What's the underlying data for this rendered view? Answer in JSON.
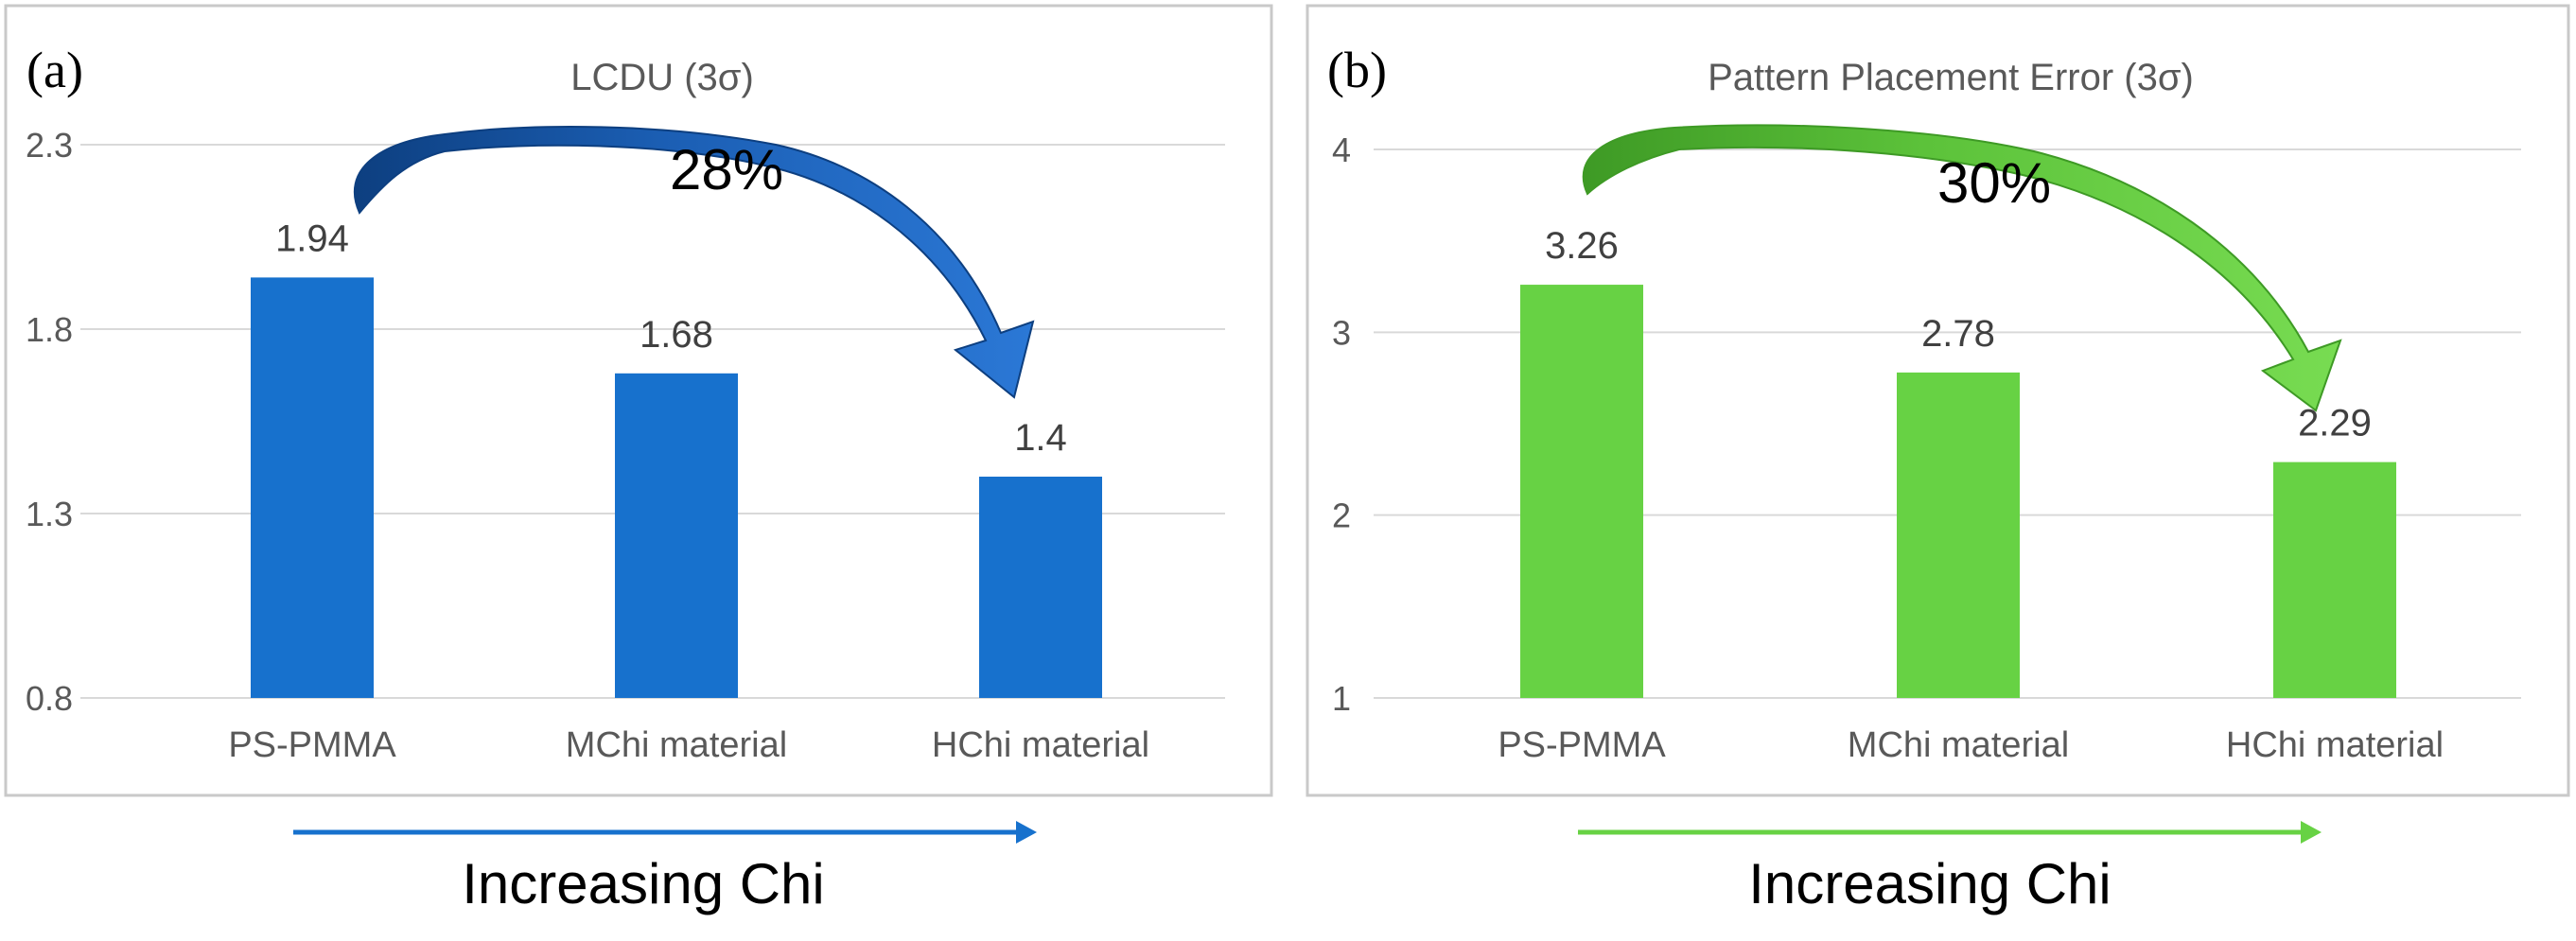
{
  "chart_data": [
    {
      "type": "bar",
      "panel_label": "(a)",
      "title": "LCDU (3σ)",
      "categories": [
        "PS-PMMA",
        "MChi material",
        "HChi material"
      ],
      "values": [
        1.94,
        1.68,
        1.4
      ],
      "value_labels": [
        "1.94",
        "1.68",
        "1.4"
      ],
      "yticks": [
        0.8,
        1.3,
        1.8,
        2.3
      ],
      "ytick_labels": [
        "0.8",
        "1.3",
        "1.8",
        "2.3"
      ],
      "ylim": [
        0.8,
        2.3
      ],
      "grid": true,
      "bar_color": "#1771cd",
      "arrow_color": "#1f5fb0",
      "annotation": "28%",
      "trend_caption": "Increasing Chi",
      "xlabel": "",
      "ylabel": ""
    },
    {
      "type": "bar",
      "panel_label": "(b)",
      "title": "Pattern Placement Error (3σ)",
      "categories": [
        "PS-PMMA",
        "MChi material",
        "HChi material"
      ],
      "values": [
        3.26,
        2.78,
        2.29
      ],
      "value_labels": [
        "3.26",
        "2.78",
        "2.29"
      ],
      "yticks": [
        1,
        2,
        3,
        4
      ],
      "ytick_labels": [
        "1",
        "2",
        "3",
        "4"
      ],
      "ylim": [
        1,
        4
      ],
      "grid": true,
      "bar_color": "#67d244",
      "arrow_color": "#4fbf2e",
      "annotation": "30%",
      "trend_caption": "Increasing Chi",
      "xlabel": "",
      "ylabel": ""
    }
  ]
}
